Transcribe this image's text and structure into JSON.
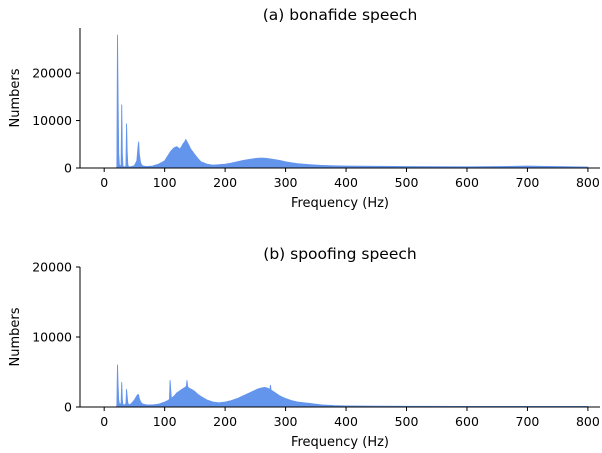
{
  "chart_data": [
    {
      "type": "area",
      "title": "(a) bonafide speech",
      "xlabel": "Frequency (Hz)",
      "ylabel": "Numbers",
      "xlim": [
        -40,
        820
      ],
      "ylim": [
        0,
        29500
      ],
      "xticks": [
        0,
        100,
        200,
        300,
        400,
        500,
        600,
        700,
        800
      ],
      "yticks": [
        0,
        10000,
        20000
      ],
      "color": "#6495ED",
      "grid": false,
      "series": [
        {
          "x": [
            20,
            21,
            22,
            23,
            24,
            25,
            26,
            28,
            29,
            30,
            31,
            32,
            34,
            36,
            37,
            38,
            39,
            40,
            42,
            45,
            50,
            54,
            56,
            57,
            58,
            60,
            62,
            65,
            70,
            80,
            90,
            100,
            105,
            110,
            115,
            120,
            125,
            128,
            130,
            133,
            135,
            137,
            140,
            143,
            146,
            150,
            155,
            160,
            170,
            180,
            190,
            200,
            210,
            220,
            230,
            240,
            250,
            260,
            270,
            280,
            290,
            300,
            310,
            320,
            340,
            360,
            380,
            400,
            450,
            500,
            600,
            650,
            700,
            720,
            750,
            800
          ],
          "y": [
            0,
            200,
            28000,
            14000,
            3000,
            800,
            400,
            600,
            13300,
            3000,
            500,
            300,
            200,
            400,
            9300,
            3500,
            800,
            300,
            200,
            300,
            500,
            1500,
            4500,
            5500,
            3000,
            1200,
            600,
            400,
            300,
            400,
            800,
            1500,
            2500,
            3500,
            4200,
            4500,
            4000,
            4500,
            5000,
            5500,
            6000,
            5500,
            4800,
            4000,
            3500,
            2800,
            2000,
            1300,
            800,
            600,
            700,
            800,
            1000,
            1300,
            1600,
            1800,
            2000,
            2100,
            2000,
            1800,
            1600,
            1300,
            1100,
            900,
            700,
            550,
            450,
            400,
            350,
            300,
            250,
            300,
            400,
            350,
            300,
            200
          ]
        }
      ]
    },
    {
      "type": "area",
      "title": "(b) spoofing speech",
      "xlabel": "Frequency (Hz)",
      "ylabel": "Numbers",
      "xlim": [
        -40,
        820
      ],
      "ylim": [
        0,
        20000
      ],
      "xticks": [
        0,
        100,
        200,
        300,
        400,
        500,
        600,
        700,
        800
      ],
      "yticks": [
        0,
        10000,
        20000
      ],
      "color": "#6495ED",
      "grid": false,
      "series": [
        {
          "x": [
            20,
            21,
            22,
            23,
            24,
            25,
            26,
            28,
            29,
            30,
            31,
            32,
            34,
            36,
            37,
            38,
            39,
            40,
            42,
            45,
            50,
            54,
            56,
            57,
            58,
            60,
            62,
            65,
            70,
            80,
            90,
            100,
            105,
            108,
            109,
            110,
            111,
            112,
            115,
            120,
            125,
            130,
            134,
            136,
            137,
            138,
            140,
            145,
            150,
            155,
            160,
            170,
            180,
            190,
            200,
            210,
            220,
            230,
            240,
            250,
            255,
            260,
            265,
            270,
            274,
            275,
            276,
            280,
            290,
            300,
            310,
            320,
            340,
            360,
            380,
            400,
            450,
            500,
            600,
            700,
            800
          ],
          "y": [
            0,
            200,
            6000,
            3000,
            1000,
            500,
            400,
            500,
            3500,
            1000,
            400,
            300,
            300,
            500,
            2500,
            1500,
            600,
            400,
            300,
            500,
            1000,
            1600,
            1800,
            1700,
            1200,
            800,
            500,
            400,
            300,
            300,
            400,
            700,
            900,
            1100,
            3800,
            2500,
            1200,
            1300,
            1500,
            2000,
            2300,
            2600,
            2800,
            3000,
            3800,
            2900,
            2700,
            2500,
            2200,
            1800,
            1500,
            1000,
            700,
            600,
            700,
            900,
            1200,
            1600,
            2000,
            2400,
            2600,
            2700,
            2800,
            2700,
            2500,
            3100,
            2400,
            2200,
            1600,
            1200,
            900,
            700,
            500,
            300,
            200,
            150,
            120,
            100,
            80,
            80,
            80
          ]
        }
      ]
    }
  ]
}
